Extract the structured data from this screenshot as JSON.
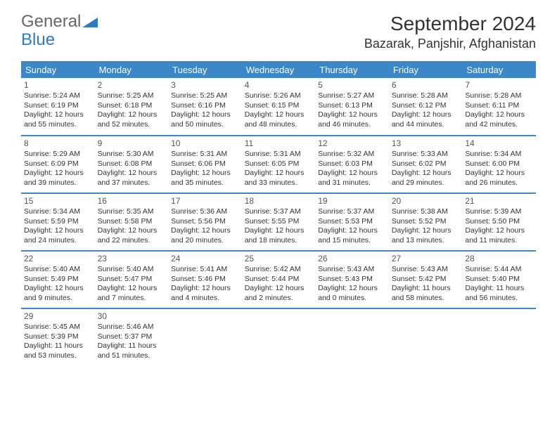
{
  "logo": {
    "text1": "General",
    "text2": "Blue"
  },
  "title": "September 2024",
  "location": "Bazarak, Panjshir, Afghanistan",
  "colors": {
    "header_bg": "#3b87c8",
    "header_text": "#ffffff",
    "border": "#3b87c8",
    "body_text": "#333333",
    "logo_gray": "#666666",
    "logo_blue": "#2f7ac0",
    "background": "#ffffff"
  },
  "day_headers": [
    "Sunday",
    "Monday",
    "Tuesday",
    "Wednesday",
    "Thursday",
    "Friday",
    "Saturday"
  ],
  "days": [
    {
      "n": "1",
      "sr": "5:24 AM",
      "ss": "6:19 PM",
      "dl": "12 hours and 55 minutes."
    },
    {
      "n": "2",
      "sr": "5:25 AM",
      "ss": "6:18 PM",
      "dl": "12 hours and 52 minutes."
    },
    {
      "n": "3",
      "sr": "5:25 AM",
      "ss": "6:16 PM",
      "dl": "12 hours and 50 minutes."
    },
    {
      "n": "4",
      "sr": "5:26 AM",
      "ss": "6:15 PM",
      "dl": "12 hours and 48 minutes."
    },
    {
      "n": "5",
      "sr": "5:27 AM",
      "ss": "6:13 PM",
      "dl": "12 hours and 46 minutes."
    },
    {
      "n": "6",
      "sr": "5:28 AM",
      "ss": "6:12 PM",
      "dl": "12 hours and 44 minutes."
    },
    {
      "n": "7",
      "sr": "5:28 AM",
      "ss": "6:11 PM",
      "dl": "12 hours and 42 minutes."
    },
    {
      "n": "8",
      "sr": "5:29 AM",
      "ss": "6:09 PM",
      "dl": "12 hours and 39 minutes."
    },
    {
      "n": "9",
      "sr": "5:30 AM",
      "ss": "6:08 PM",
      "dl": "12 hours and 37 minutes."
    },
    {
      "n": "10",
      "sr": "5:31 AM",
      "ss": "6:06 PM",
      "dl": "12 hours and 35 minutes."
    },
    {
      "n": "11",
      "sr": "5:31 AM",
      "ss": "6:05 PM",
      "dl": "12 hours and 33 minutes."
    },
    {
      "n": "12",
      "sr": "5:32 AM",
      "ss": "6:03 PM",
      "dl": "12 hours and 31 minutes."
    },
    {
      "n": "13",
      "sr": "5:33 AM",
      "ss": "6:02 PM",
      "dl": "12 hours and 29 minutes."
    },
    {
      "n": "14",
      "sr": "5:34 AM",
      "ss": "6:00 PM",
      "dl": "12 hours and 26 minutes."
    },
    {
      "n": "15",
      "sr": "5:34 AM",
      "ss": "5:59 PM",
      "dl": "12 hours and 24 minutes."
    },
    {
      "n": "16",
      "sr": "5:35 AM",
      "ss": "5:58 PM",
      "dl": "12 hours and 22 minutes."
    },
    {
      "n": "17",
      "sr": "5:36 AM",
      "ss": "5:56 PM",
      "dl": "12 hours and 20 minutes."
    },
    {
      "n": "18",
      "sr": "5:37 AM",
      "ss": "5:55 PM",
      "dl": "12 hours and 18 minutes."
    },
    {
      "n": "19",
      "sr": "5:37 AM",
      "ss": "5:53 PM",
      "dl": "12 hours and 15 minutes."
    },
    {
      "n": "20",
      "sr": "5:38 AM",
      "ss": "5:52 PM",
      "dl": "12 hours and 13 minutes."
    },
    {
      "n": "21",
      "sr": "5:39 AM",
      "ss": "5:50 PM",
      "dl": "12 hours and 11 minutes."
    },
    {
      "n": "22",
      "sr": "5:40 AM",
      "ss": "5:49 PM",
      "dl": "12 hours and 9 minutes."
    },
    {
      "n": "23",
      "sr": "5:40 AM",
      "ss": "5:47 PM",
      "dl": "12 hours and 7 minutes."
    },
    {
      "n": "24",
      "sr": "5:41 AM",
      "ss": "5:46 PM",
      "dl": "12 hours and 4 minutes."
    },
    {
      "n": "25",
      "sr": "5:42 AM",
      "ss": "5:44 PM",
      "dl": "12 hours and 2 minutes."
    },
    {
      "n": "26",
      "sr": "5:43 AM",
      "ss": "5:43 PM",
      "dl": "12 hours and 0 minutes."
    },
    {
      "n": "27",
      "sr": "5:43 AM",
      "ss": "5:42 PM",
      "dl": "11 hours and 58 minutes."
    },
    {
      "n": "28",
      "sr": "5:44 AM",
      "ss": "5:40 PM",
      "dl": "11 hours and 56 minutes."
    },
    {
      "n": "29",
      "sr": "5:45 AM",
      "ss": "5:39 PM",
      "dl": "11 hours and 53 minutes."
    },
    {
      "n": "30",
      "sr": "5:46 AM",
      "ss": "5:37 PM",
      "dl": "11 hours and 51 minutes."
    }
  ],
  "labels": {
    "sunrise": "Sunrise:",
    "sunset": "Sunset:",
    "daylight": "Daylight:"
  }
}
